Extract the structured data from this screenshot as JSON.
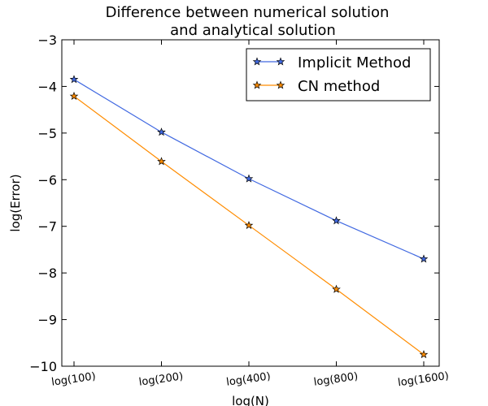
{
  "chart_data": {
    "type": "line",
    "title_lines": [
      "Difference between numerical solution",
      "and analytical solution"
    ],
    "xlabel": "log(N)",
    "ylabel": "log(Error)",
    "categories": [
      "log(100)",
      "log(200)",
      "log(400)",
      "log(800)",
      "log(1600)"
    ],
    "ylim": [
      -10,
      -3
    ],
    "yticks": [
      -3,
      -4,
      -5,
      -6,
      -7,
      -8,
      -9,
      -10
    ],
    "ytick_labels": [
      "−3",
      "−4",
      "−5",
      "−6",
      "−7",
      "−8",
      "−9",
      "−10"
    ],
    "grid": false,
    "legend_position": "top-right",
    "series": [
      {
        "name": "Implicit Method",
        "color": "#4169e1",
        "marker": "star",
        "values": [
          -3.85,
          -4.98,
          -5.98,
          -6.88,
          -7.7
        ]
      },
      {
        "name": "CN method",
        "color": "#ff8c00",
        "marker": "star",
        "values": [
          -4.21,
          -5.61,
          -6.98,
          -8.35,
          -9.75
        ]
      }
    ]
  }
}
